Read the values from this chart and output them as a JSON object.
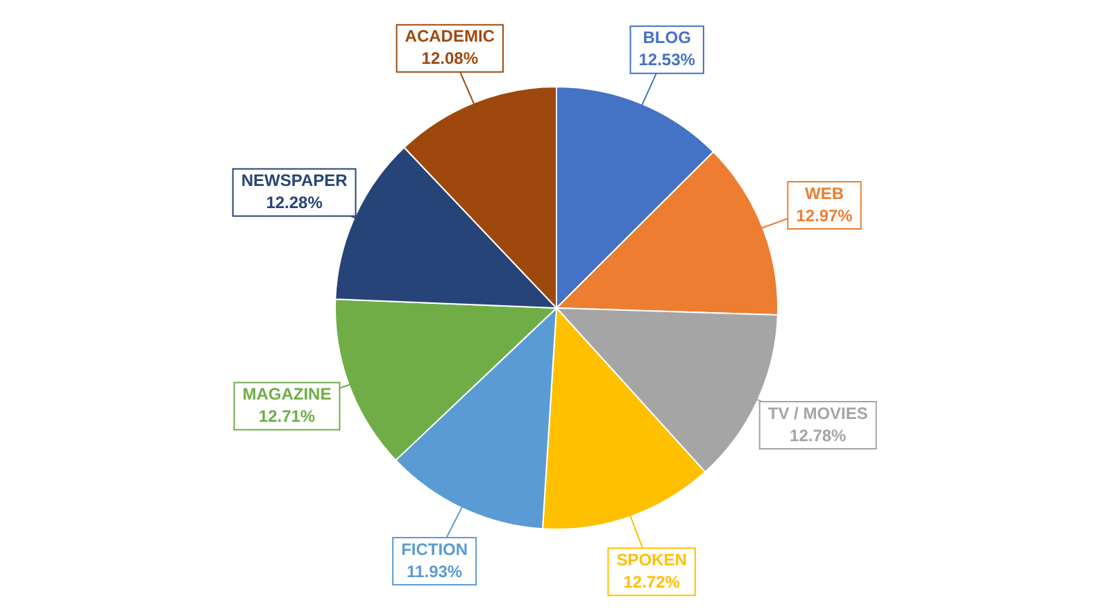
{
  "chart_data": {
    "type": "pie",
    "categories": [
      "BLOG",
      "WEB",
      "TV / MOVIES",
      "SPOKEN",
      "FICTION",
      "MAGAZINE",
      "NEWSPAPER",
      "ACADEMIC"
    ],
    "values": [
      12.53,
      12.97,
      12.78,
      12.72,
      11.93,
      12.71,
      12.28,
      12.08
    ],
    "colors": [
      "#4472c4",
      "#ed7d31",
      "#a5a5a5",
      "#ffc000",
      "#5b9bd5",
      "#70ad47",
      "#264478",
      "#9e480e"
    ],
    "value_labels": [
      "12.53%",
      "12.97%",
      "12.78%",
      "12.72%",
      "11.93%",
      "12.71%",
      "12.28%",
      "12.08%"
    ]
  }
}
